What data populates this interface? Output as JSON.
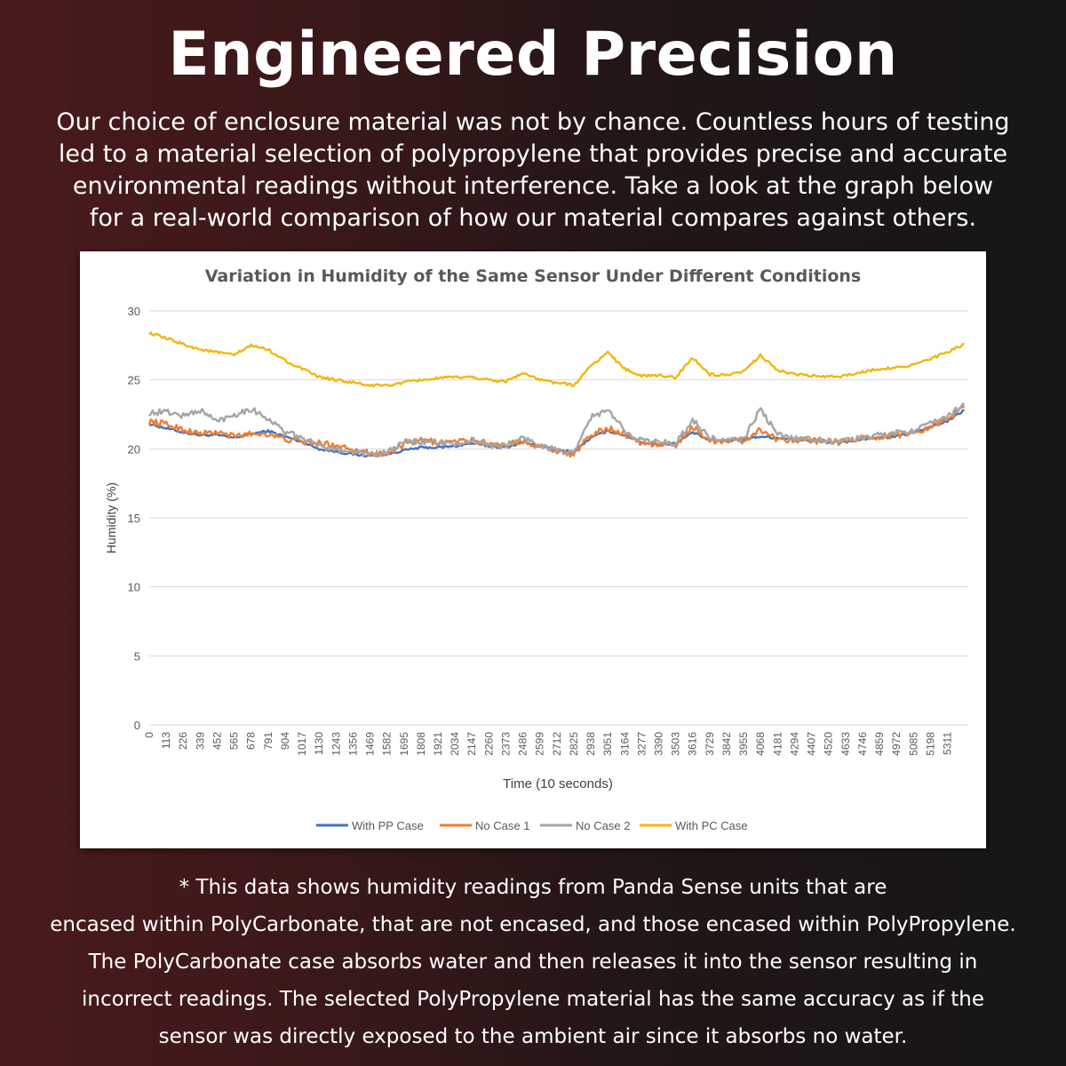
{
  "header": {
    "title": "Engineered Precision",
    "intro": "Our choice of enclosure material was not by chance. Countless hours of testing led to a material selection of polypropylene that provides precise and accurate environmental readings without interference. Take a look at the graph below for a real-world comparison of how our material compares against others."
  },
  "footnote": {
    "lines": [
      "* This data shows humidity readings from Panda Sense units that are",
      "encased within PolyCarbonate, that are not encased, and those encased within PolyPropylene.",
      "The PolyCarbonate case absorbs water and then releases it into the sensor resulting in",
      "incorrect readings. The selected PolyPropylene material has the same accuracy as if the",
      "sensor was directly exposed to the ambient air since it absorbs no water."
    ]
  },
  "chart_data": {
    "type": "line",
    "title": "Variation in Humidity of the Same Sensor Under Different Conditions",
    "xlabel": "Time (10 seconds)",
    "ylabel": "Humidity (%)",
    "ylim": [
      0,
      30
    ],
    "yticks": [
      0,
      5,
      10,
      15,
      20,
      25,
      30
    ],
    "grid": true,
    "legend_position": "bottom",
    "xlim": [
      0,
      5450
    ],
    "x_tick_labels": [
      "0",
      "113",
      "226",
      "339",
      "452",
      "565",
      "678",
      "791",
      "904",
      "1017",
      "1130",
      "1243",
      "1356",
      "1469",
      "1582",
      "1695",
      "1808",
      "1921",
      "2034",
      "2147",
      "2260",
      "2373",
      "2486",
      "2599",
      "2712",
      "2825",
      "2938",
      "3051",
      "3164",
      "3277",
      "3390",
      "3503",
      "3616",
      "3729",
      "3842",
      "3955",
      "4068",
      "4181",
      "4294",
      "4407",
      "4520",
      "4633",
      "4746",
      "4859",
      "4972",
      "5085",
      "5198",
      "5311"
    ],
    "x": [
      0,
      113,
      226,
      339,
      452,
      565,
      678,
      791,
      904,
      1017,
      1130,
      1243,
      1356,
      1469,
      1582,
      1695,
      1808,
      1921,
      2034,
      2147,
      2260,
      2373,
      2486,
      2599,
      2712,
      2825,
      2938,
      3051,
      3164,
      3277,
      3390,
      3503,
      3616,
      3729,
      3842,
      3955,
      4068,
      4181,
      4294,
      4407,
      4520,
      4633,
      4746,
      4859,
      4972,
      5085,
      5198,
      5311,
      5424
    ],
    "series": [
      {
        "name": "With PP Case",
        "color": "#4472c4",
        "values": [
          21.8,
          21.5,
          21.2,
          21.0,
          21.0,
          20.8,
          21.1,
          21.3,
          20.9,
          20.5,
          20.0,
          19.8,
          19.6,
          19.5,
          19.6,
          19.9,
          20.1,
          20.1,
          20.2,
          20.4,
          20.2,
          20.1,
          20.5,
          20.2,
          19.9,
          19.8,
          20.8,
          21.3,
          21.0,
          20.5,
          20.3,
          20.4,
          21.2,
          20.6,
          20.6,
          20.7,
          20.9,
          20.8,
          20.7,
          20.6,
          20.5,
          20.5,
          20.7,
          20.8,
          20.9,
          21.2,
          21.6,
          22.0,
          22.8
        ]
      },
      {
        "name": "No Case 1",
        "color": "#ed7d31",
        "values": [
          22.0,
          21.8,
          21.4,
          21.1,
          21.2,
          20.9,
          21.1,
          21.1,
          20.7,
          20.5,
          20.4,
          20.3,
          20.0,
          19.7,
          19.6,
          20.3,
          20.6,
          20.5,
          20.5,
          20.6,
          20.4,
          20.3,
          20.6,
          20.2,
          19.9,
          19.6,
          21.0,
          21.5,
          21.1,
          20.4,
          20.3,
          20.3,
          21.6,
          20.6,
          20.6,
          20.6,
          21.4,
          20.7,
          20.7,
          20.6,
          20.5,
          20.5,
          20.8,
          20.9,
          21.0,
          21.2,
          21.6,
          22.2,
          23.0
        ]
      },
      {
        "name": "No Case 2",
        "color": "#a5a5a5",
        "values": [
          22.6,
          22.7,
          22.4,
          22.8,
          22.0,
          22.5,
          22.9,
          22.2,
          21.2,
          20.8,
          20.2,
          20.0,
          19.8,
          19.6,
          19.7,
          20.5,
          20.5,
          20.5,
          20.3,
          20.6,
          20.3,
          20.2,
          20.8,
          20.3,
          19.9,
          19.6,
          22.3,
          22.8,
          21.3,
          20.6,
          20.5,
          20.4,
          22.1,
          20.8,
          20.6,
          20.7,
          22.9,
          21.0,
          20.8,
          20.7,
          20.6,
          20.6,
          20.8,
          21.0,
          21.2,
          21.3,
          21.8,
          22.4,
          23.2
        ]
      },
      {
        "name": "With PC Case",
        "color": "#f2b70f",
        "values": [
          28.4,
          28.0,
          27.6,
          27.2,
          27.0,
          26.8,
          27.5,
          27.2,
          26.4,
          25.8,
          25.2,
          25.0,
          24.8,
          24.6,
          24.6,
          24.8,
          25.0,
          25.1,
          25.2,
          25.2,
          25.0,
          24.9,
          25.5,
          25.0,
          24.8,
          24.6,
          26.0,
          27.0,
          25.8,
          25.3,
          25.3,
          25.2,
          26.6,
          25.4,
          25.3,
          25.6,
          26.8,
          25.7,
          25.4,
          25.3,
          25.2,
          25.3,
          25.6,
          25.8,
          25.9,
          26.1,
          26.5,
          27.0,
          27.6
        ]
      }
    ]
  }
}
